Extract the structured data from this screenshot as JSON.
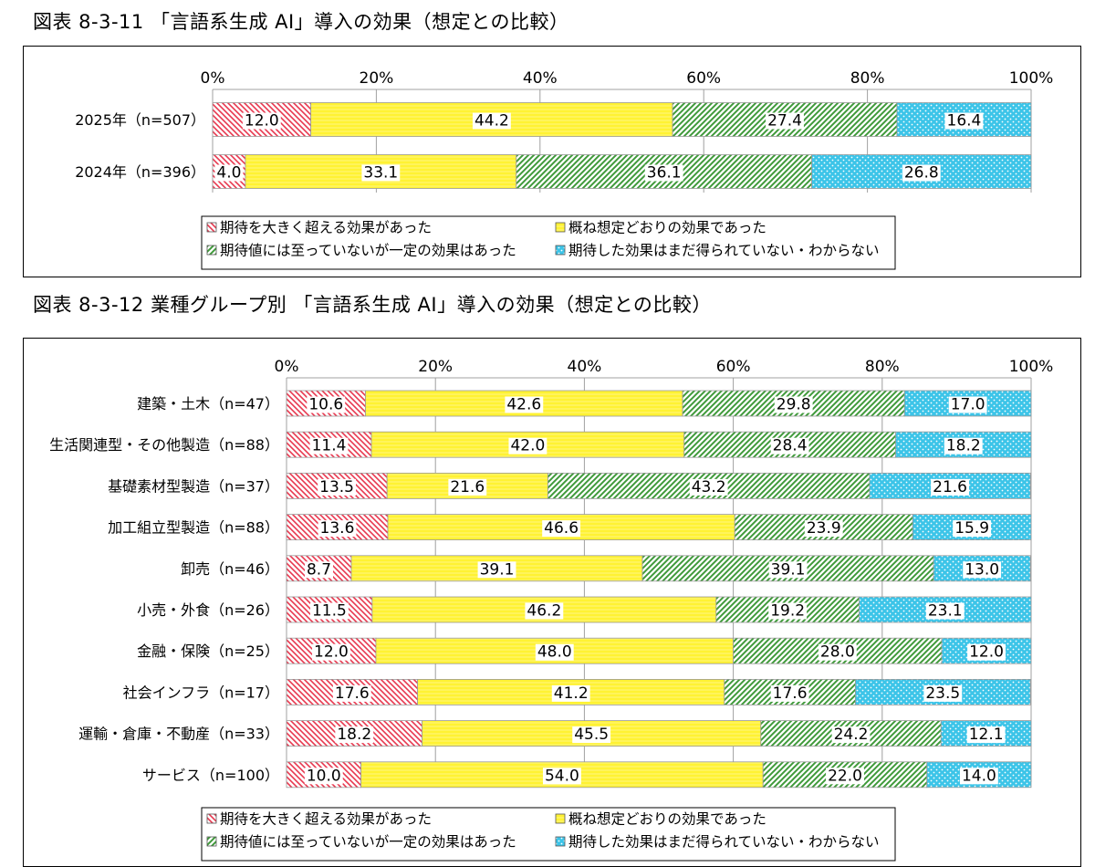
{
  "figures": [
    {
      "title": "図表 8-3-11 「言語系生成 AI」導入の効果（想定との比較）"
    },
    {
      "title": "図表 8-3-12  業種グループ別 「言語系生成 AI」導入の効果（想定との比較）"
    }
  ],
  "colors": {
    "red": "#e8384f",
    "yellow": "#fff233",
    "green": "#3f9a3a",
    "blue": "#3cc4e8",
    "gray": "#999999"
  },
  "chart_data": [
    {
      "type": "bar",
      "orientation": "horizontal",
      "stacked": true,
      "title": "図表 8-3-11 「言語系生成 AI」導入の効果（想定との比較）",
      "categories": [
        "2025年（n=507）",
        "2024年（n=396）"
      ],
      "xlim": [
        0,
        100
      ],
      "ticks": [
        "0%",
        "20%",
        "40%",
        "60%",
        "80%",
        "100%"
      ],
      "grid": true,
      "legend_position": "bottom",
      "series": [
        {
          "name": "期待を大きく超える効果があった",
          "color": "red",
          "values": [
            12.0,
            4.0
          ],
          "labels": [
            "12.0",
            "4.0"
          ]
        },
        {
          "name": "概ね想定どおりの効果であった",
          "color": "yellow",
          "values": [
            44.2,
            33.1
          ],
          "labels": [
            "44.2",
            "33.1"
          ]
        },
        {
          "name": "期待値には至っていないが一定の効果はあった",
          "color": "green",
          "values": [
            27.4,
            36.1
          ],
          "labels": [
            "27.4",
            "36.1"
          ]
        },
        {
          "name": "期待した効果はまだ得られていない・わからない",
          "color": "blue",
          "values": [
            16.4,
            26.8
          ],
          "labels": [
            "16.4",
            "26.8"
          ]
        }
      ]
    },
    {
      "type": "bar",
      "orientation": "horizontal",
      "stacked": true,
      "title": "図表 8-3-12  業種グループ別 「言語系生成 AI」導入の効果（想定との比較）",
      "categories": [
        "建築・土木（n=47）",
        "生活関連型・その他製造（n=88）",
        "基礎素材型製造（n=37）",
        "加工組立型製造（n=88）",
        "卸売（n=46）",
        "小売・外食（n=26）",
        "金融・保険（n=25）",
        "社会インフラ（n=17）",
        "運輸・倉庫・不動産（n=33）",
        "サービス（n=100）"
      ],
      "xlim": [
        0,
        100
      ],
      "ticks": [
        "0%",
        "20%",
        "40%",
        "60%",
        "80%",
        "100%"
      ],
      "grid": true,
      "legend_position": "bottom",
      "series": [
        {
          "name": "期待を大きく超える効果があった",
          "color": "red",
          "values": [
            10.6,
            11.4,
            13.5,
            13.6,
            8.7,
            11.5,
            12.0,
            17.6,
            18.2,
            10.0
          ],
          "labels": [
            "10.6",
            "11.4",
            "13.5",
            "13.6",
            "8.7",
            "11.5",
            "12.0",
            "17.6",
            "18.2",
            "10.0"
          ]
        },
        {
          "name": "概ね想定どおりの効果であった",
          "color": "yellow",
          "values": [
            42.6,
            42.0,
            21.6,
            46.6,
            39.1,
            46.2,
            48.0,
            41.2,
            45.5,
            54.0
          ],
          "labels": [
            "42.6",
            "42.0",
            "21.6",
            "46.6",
            "39.1",
            "46.2",
            "48.0",
            "41.2",
            "45.5",
            "54.0"
          ]
        },
        {
          "name": "期待値には至っていないが一定の効果はあった",
          "color": "green",
          "values": [
            29.8,
            28.4,
            43.2,
            23.9,
            39.1,
            19.2,
            28.0,
            17.6,
            24.2,
            22.0
          ],
          "labels": [
            "29.8",
            "28.4",
            "43.2",
            "23.9",
            "39.1",
            "19.2",
            "28.0",
            "17.6",
            "24.2",
            "22.0"
          ]
        },
        {
          "name": "期待した効果はまだ得られていない・わからない",
          "color": "blue",
          "values": [
            17.0,
            18.2,
            21.6,
            15.9,
            13.0,
            23.1,
            12.0,
            23.5,
            12.1,
            14.0
          ],
          "labels": [
            "17.0",
            "18.2",
            "21.6",
            "15.9",
            "13.0",
            "23.1",
            "12.0",
            "23.5",
            "12.1",
            "14.0"
          ]
        }
      ]
    }
  ]
}
